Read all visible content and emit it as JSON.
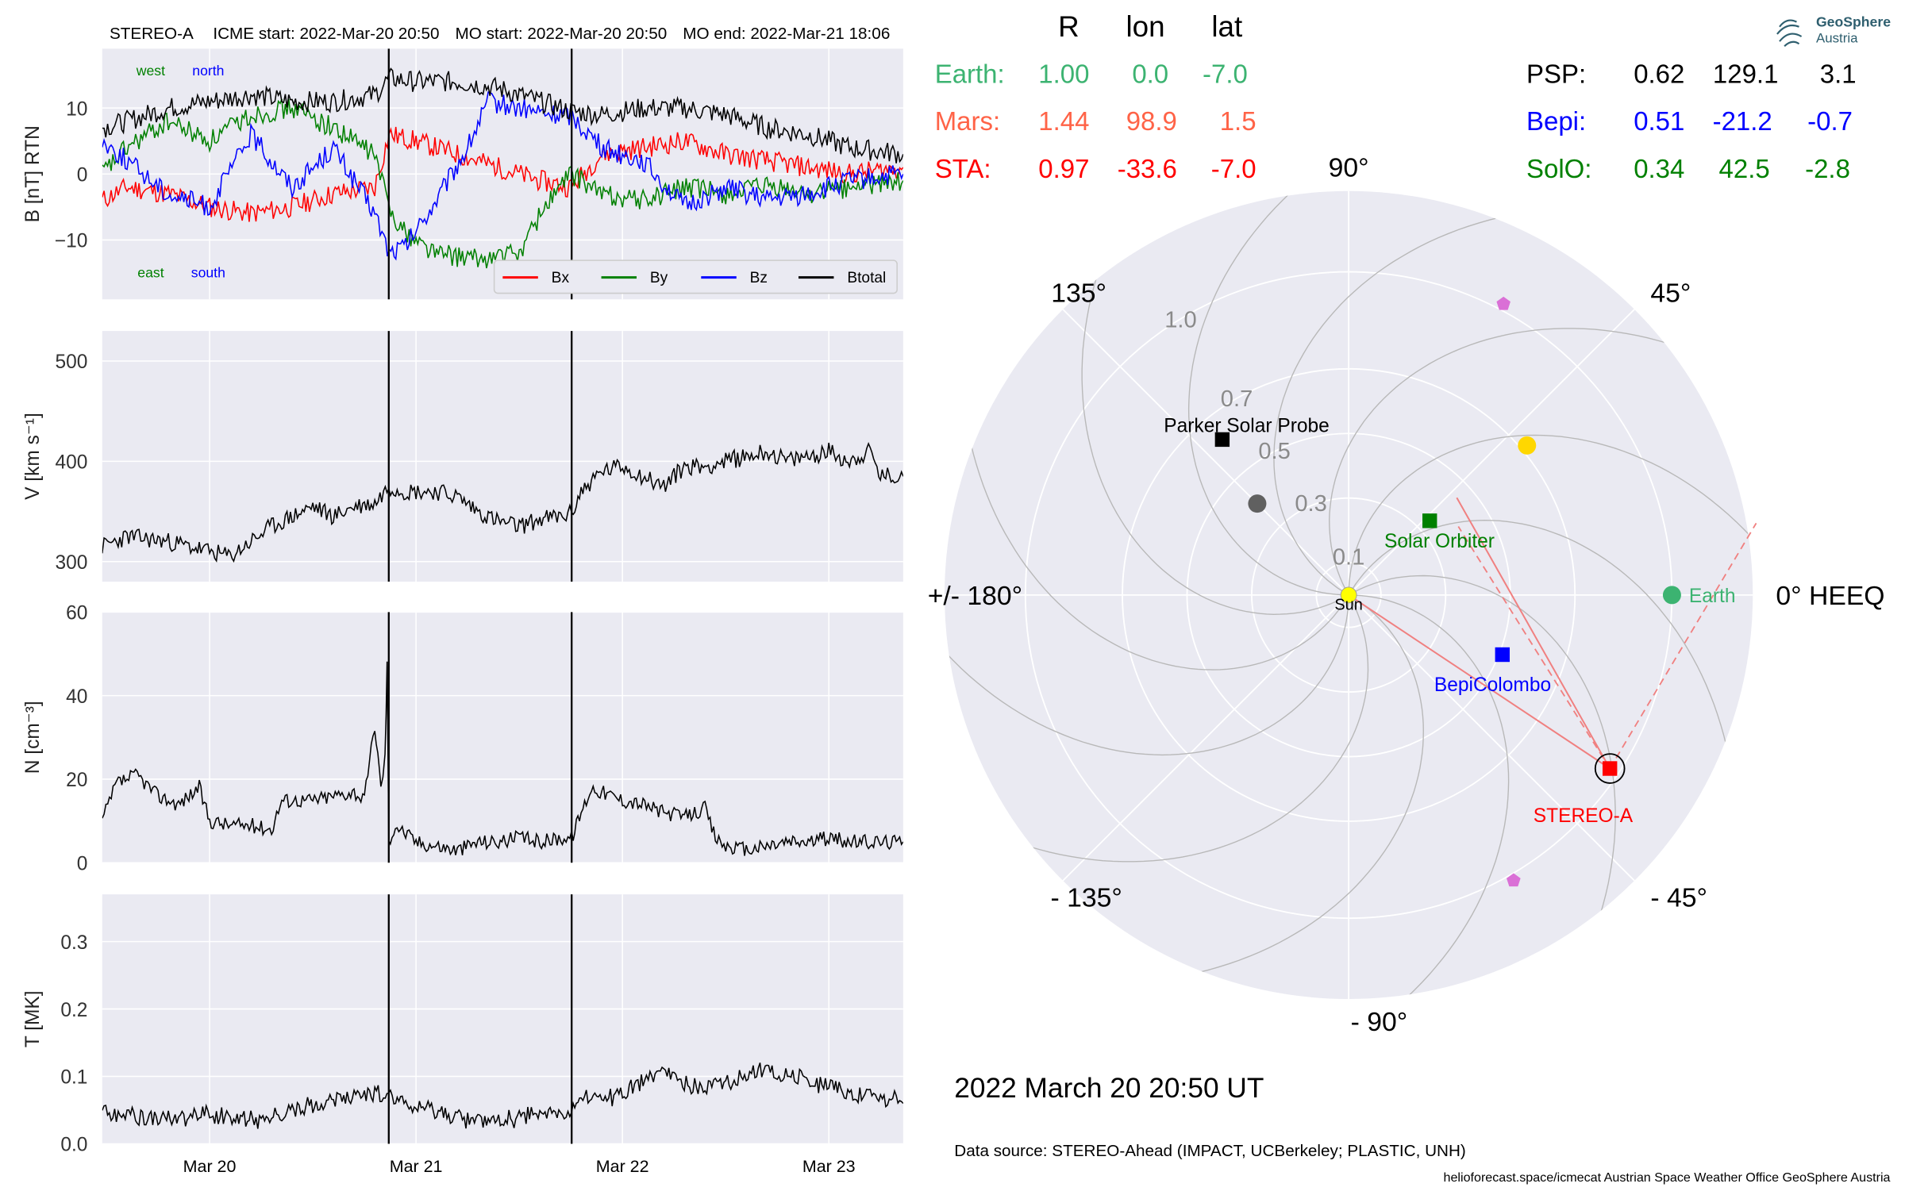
{
  "header": {
    "spacecraft": "STEREO-A",
    "icme_start": "ICME start: 2022-Mar-20 20:50",
    "mo_start": "MO start: 2022-Mar-20 20:50",
    "mo_end": "MO end: 2022-Mar-21 18:06"
  },
  "colors": {
    "panel_bg": "#eaeaf2",
    "grid": "#ffffff",
    "bx": "#ff0000",
    "by": "#008000",
    "bz": "#0000ff",
    "btotal": "#000000",
    "earth": "#3cb371",
    "mars": "#ff6347",
    "sta": "#ff0000",
    "psp": "#000000",
    "bepi": "#0000ff",
    "solo": "#008000",
    "sun": "#ffff00",
    "mercury": "#606060",
    "venus": "#ffd700",
    "pentagon": "#da70d6"
  },
  "chart_data": [
    {
      "type": "line",
      "title": "",
      "ylabel": "B [nT] RTN",
      "ylim": [
        -19,
        19
      ],
      "yticks": [
        "10",
        "0",
        "−10"
      ],
      "ytick_values": [
        10,
        0,
        -10
      ],
      "x_ticks": [
        "Mar 20",
        "Mar 21",
        "Mar 22",
        "Mar 23"
      ],
      "x_tick_days": [
        1.0,
        2.0,
        3.0,
        4.0
      ],
      "x_range_days": [
        0.48,
        4.36
      ],
      "event_lines_days": [
        1.868,
        2.754
      ],
      "annotations": {
        "west": "west",
        "north": "north",
        "east": "east",
        "south": "south"
      },
      "legend": [
        "Bx",
        "By",
        "Bz",
        "Btotal"
      ],
      "legend_position": "lower-right",
      "series": [
        {
          "name": "Bx",
          "key": "bx",
          "x": [
            0.48,
            0.6,
            0.8,
            1.0,
            1.2,
            1.4,
            1.6,
            1.8,
            1.87,
            2.0,
            2.2,
            2.4,
            2.6,
            2.75,
            2.9,
            3.1,
            3.3,
            3.5,
            3.7,
            3.9,
            4.1,
            4.36
          ],
          "values": [
            -4,
            -2,
            -3,
            -5,
            -6,
            -5,
            -3,
            -2,
            6,
            5,
            3,
            1,
            -1,
            -2,
            3,
            4,
            5,
            3,
            2,
            1,
            0,
            1
          ]
        },
        {
          "name": "By",
          "key": "by",
          "x": [
            0.48,
            0.6,
            0.8,
            1.0,
            1.2,
            1.4,
            1.6,
            1.8,
            1.87,
            1.95,
            2.1,
            2.3,
            2.5,
            2.62,
            2.75,
            2.9,
            3.1,
            3.3,
            3.5,
            3.7,
            3.9,
            4.1,
            4.36
          ],
          "values": [
            0,
            4,
            8,
            5,
            9,
            10,
            7,
            3,
            -5,
            -9,
            -12,
            -13,
            -12,
            -5,
            0,
            -3,
            -4,
            -2,
            -3,
            -2,
            -3,
            -2,
            -1
          ]
        },
        {
          "name": "Bz",
          "key": "bz",
          "x": [
            0.48,
            0.6,
            0.8,
            1.0,
            1.2,
            1.4,
            1.6,
            1.8,
            1.87,
            1.95,
            2.1,
            2.25,
            2.35,
            2.5,
            2.65,
            2.75,
            2.9,
            3.1,
            3.3,
            3.5,
            3.7,
            3.9,
            4.1,
            4.36
          ],
          "values": [
            5,
            2,
            -3,
            -5,
            6,
            -2,
            4,
            -6,
            -12,
            -11,
            -4,
            4,
            11,
            10,
            9,
            9,
            4,
            2,
            -5,
            -2,
            -4,
            -3,
            -1,
            0
          ]
        },
        {
          "name": "Btotal",
          "key": "btotal",
          "x": [
            0.48,
            0.6,
            0.8,
            1.0,
            1.2,
            1.4,
            1.6,
            1.8,
            1.87,
            2.0,
            2.2,
            2.4,
            2.6,
            2.75,
            2.9,
            3.1,
            3.3,
            3.5,
            3.7,
            3.9,
            4.1,
            4.36
          ],
          "values": [
            7,
            8,
            10,
            11,
            12,
            11,
            11,
            12,
            14.5,
            14,
            14,
            13,
            11,
            9.5,
            9,
            10,
            10,
            9,
            7,
            6,
            4,
            3
          ]
        }
      ]
    },
    {
      "type": "line",
      "ylabel": "V [km s⁻¹]",
      "ylim": [
        280,
        530
      ],
      "yticks": [
        "500",
        "400",
        "300"
      ],
      "ytick_values": [
        500,
        400,
        300
      ],
      "series": [
        {
          "name": "",
          "key": "btotal",
          "x": [
            0.48,
            0.6,
            0.8,
            1.0,
            1.1,
            1.2,
            1.3,
            1.4,
            1.5,
            1.6,
            1.7,
            1.8,
            1.868,
            1.95,
            2.1,
            2.2,
            2.3,
            2.4,
            2.5,
            2.6,
            2.7,
            2.754,
            2.8,
            2.9,
            3.0,
            3.1,
            3.2,
            3.3,
            3.4,
            3.5,
            3.6,
            3.7,
            3.8,
            3.9,
            4.0,
            4.1,
            4.2,
            4.25,
            4.36
          ],
          "values": [
            315,
            325,
            320,
            310,
            305,
            320,
            335,
            345,
            355,
            345,
            355,
            358,
            375,
            370,
            370,
            365,
            350,
            340,
            335,
            342,
            345,
            348,
            370,
            390,
            395,
            385,
            375,
            395,
            395,
            400,
            405,
            410,
            400,
            405,
            410,
            400,
            410,
            385,
            385
          ]
        }
      ]
    },
    {
      "type": "line",
      "ylabel": "N [cm⁻³]",
      "ylim": [
        0,
        60
      ],
      "yticks": [
        "60",
        "40",
        "20",
        "0"
      ],
      "ytick_values": [
        60,
        40,
        20,
        0
      ],
      "series": [
        {
          "name": "",
          "key": "btotal",
          "x": [
            0.48,
            0.55,
            0.65,
            0.75,
            0.85,
            0.95,
            1.0,
            1.1,
            1.2,
            1.3,
            1.35,
            1.5,
            1.6,
            1.7,
            1.75,
            1.8,
            1.83,
            1.85,
            1.86,
            1.868,
            1.9,
            2.0,
            2.1,
            2.2,
            2.3,
            2.4,
            2.5,
            2.6,
            2.7,
            2.754,
            2.8,
            2.85,
            2.9,
            3.0,
            3.1,
            3.2,
            3.3,
            3.4,
            3.45,
            3.5,
            3.6,
            3.7,
            3.8,
            3.9,
            4.0,
            4.1,
            4.2,
            4.36
          ],
          "values": [
            10,
            19,
            21,
            16,
            14,
            18,
            10,
            9,
            9,
            8,
            15,
            15,
            16,
            17,
            15,
            33,
            18,
            25,
            48,
            5,
            9,
            5,
            4,
            3,
            5,
            5,
            6,
            5,
            6,
            6,
            12,
            18,
            17,
            15,
            14,
            12,
            11,
            13,
            6,
            4,
            3,
            4,
            5,
            5,
            6,
            5,
            5,
            5
          ]
        }
      ]
    },
    {
      "type": "line",
      "ylabel": "T [MK]",
      "ylim": [
        0,
        0.37
      ],
      "yticks": [
        "0.3",
        "0.2",
        "0.1",
        "0.0"
      ],
      "ytick_values": [
        0.3,
        0.2,
        0.1,
        0.0
      ],
      "series": [
        {
          "name": "",
          "key": "btotal",
          "x": [
            0.48,
            0.6,
            0.7,
            0.8,
            0.9,
            1.0,
            1.1,
            1.2,
            1.3,
            1.4,
            1.5,
            1.6,
            1.7,
            1.8,
            1.868,
            1.95,
            2.1,
            2.2,
            2.3,
            2.4,
            2.5,
            2.6,
            2.7,
            2.754,
            2.8,
            2.9,
            3.0,
            3.1,
            3.2,
            3.3,
            3.4,
            3.5,
            3.6,
            3.7,
            3.8,
            3.9,
            4.0,
            4.1,
            4.2,
            4.36
          ],
          "values": [
            0.045,
            0.04,
            0.035,
            0.03,
            0.035,
            0.04,
            0.035,
            0.03,
            0.035,
            0.045,
            0.055,
            0.06,
            0.065,
            0.07,
            0.065,
            0.05,
            0.04,
            0.035,
            0.03,
            0.03,
            0.035,
            0.04,
            0.04,
            0.045,
            0.065,
            0.06,
            0.07,
            0.09,
            0.1,
            0.085,
            0.08,
            0.09,
            0.1,
            0.105,
            0.1,
            0.09,
            0.08,
            0.07,
            0.065,
            0.06
          ]
        }
      ]
    },
    {
      "type": "scatter",
      "subtype": "polar",
      "table_headers": [
        "R",
        "lon",
        "lat"
      ],
      "table_rows": [
        {
          "name": "Earth:",
          "R": "1.00",
          "lon": "0.0",
          "lat": "-7.0",
          "key": "earth"
        },
        {
          "name": "Mars:",
          "R": "1.44",
          "lon": "98.9",
          "lat": "1.5",
          "key": "mars"
        },
        {
          "name": "STA:",
          "R": "0.97",
          "lon": "-33.6",
          "lat": "-7.0",
          "key": "sta"
        },
        {
          "name": "PSP:",
          "R": "0.62",
          "lon": "129.1",
          "lat": "3.1",
          "key": "psp"
        },
        {
          "name": "Bepi:",
          "R": "0.51",
          "lon": "-21.2",
          "lat": "-0.7",
          "key": "bepi"
        },
        {
          "name": "SolO:",
          "R": "0.34",
          "lon": "42.5",
          "lat": "-2.8",
          "key": "solo"
        }
      ],
      "radial_ticks": [
        "0.1",
        "0.3",
        "0.5",
        "0.7",
        "1.0"
      ],
      "radial_tick_values": [
        0.1,
        0.3,
        0.5,
        0.7,
        1.0
      ],
      "angle_labels": [
        "0° HEEQ",
        "45°",
        "90°",
        "135°",
        "+/- 180°",
        "- 135°",
        "- 90°",
        "- 45°"
      ],
      "angle_values": [
        0,
        45,
        90,
        135,
        180,
        -135,
        -90,
        -45
      ],
      "bodies": [
        {
          "label": "Sun",
          "r": 0.0,
          "lon": 0,
          "marker": "circle",
          "key": "sun"
        },
        {
          "label": "Earth",
          "r": 1.0,
          "lon": 0,
          "marker": "circle",
          "key": "earth"
        },
        {
          "label": "STEREO-A",
          "r": 0.97,
          "lon": -33.6,
          "marker": "square",
          "key": "sta",
          "ring": true
        },
        {
          "label": "Parker Solar Probe",
          "r": 0.62,
          "lon": 129.1,
          "marker": "square",
          "key": "psp"
        },
        {
          "label": "BepiColombo",
          "r": 0.51,
          "lon": -21.2,
          "marker": "square",
          "key": "bepi"
        },
        {
          "label": "Solar Orbiter",
          "r": 0.34,
          "lon": 42.5,
          "marker": "square",
          "key": "solo"
        },
        {
          "label": "",
          "r": 0.4,
          "lon": 135,
          "marker": "circle",
          "key": "mercury"
        },
        {
          "label": "",
          "r": 0.72,
          "lon": 40,
          "marker": "circle",
          "key": "venus"
        },
        {
          "label": "",
          "r": 1.02,
          "lon": 62,
          "marker": "pentagon",
          "key": "pentagon"
        },
        {
          "label": "",
          "r": 1.02,
          "lon": -60,
          "marker": "pentagon",
          "key": "pentagon"
        }
      ],
      "date_label": "2022 March 20  20:50 UT"
    }
  ],
  "footer": {
    "data_source": "Data source: STEREO-Ahead (IMPACT, UCBerkeley; PLASTIC, UNH)",
    "credits": "helioforecast.space/icmecat   Austrian Space Weather Office   GeoSphere Austria"
  },
  "logo": {
    "line1": "GeoSphere",
    "line2": "Austria"
  }
}
